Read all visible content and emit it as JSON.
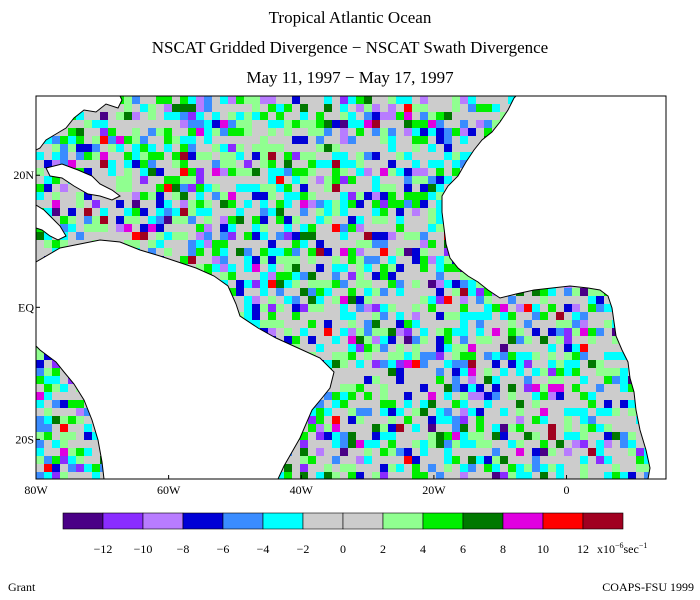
{
  "title_lines": [
    "Tropical Atlantic Ocean",
    "NSCAT Gridded Divergence − NSCAT Swath Divergence",
    "May 11, 1997 − May 17, 1997"
  ],
  "map": {
    "lon_range": [
      -80,
      15
    ],
    "lat_range": [
      -26,
      32
    ],
    "lat_labels": [
      {
        "text": "20N",
        "lat": 20
      },
      {
        "text": "EQ",
        "lat": 0
      },
      {
        "text": "20S",
        "lat": -20
      }
    ],
    "lon_labels": [
      {
        "text": "80W",
        "lon": -80
      },
      {
        "text": "60W",
        "lon": -60
      },
      {
        "text": "40W",
        "lon": -40
      },
      {
        "text": "20W",
        "lon": -20
      },
      {
        "text": "0",
        "lon": 0
      }
    ]
  },
  "colorbar": {
    "colors": [
      "#4a0086",
      "#8a2cff",
      "#b87cff",
      "#0000d6",
      "#3a8cff",
      "#00ffff",
      "#cccccc",
      "#cccccc",
      "#90ff90",
      "#00ee00",
      "#007800",
      "#e000e0",
      "#ff0000",
      "#a00020"
    ],
    "labels": [
      "−12",
      "−10",
      "−8",
      "−6",
      "−4",
      "−2",
      "0",
      "2",
      "4",
      "6",
      "8",
      "10",
      "12"
    ],
    "unit_prefix": "x10",
    "unit_exponent": "−6",
    "unit_suffix": "sec",
    "unit_suffix_exponent": "−1"
  },
  "footer": {
    "left": "Grant",
    "right": "COAPS-FSU 1999"
  }
}
